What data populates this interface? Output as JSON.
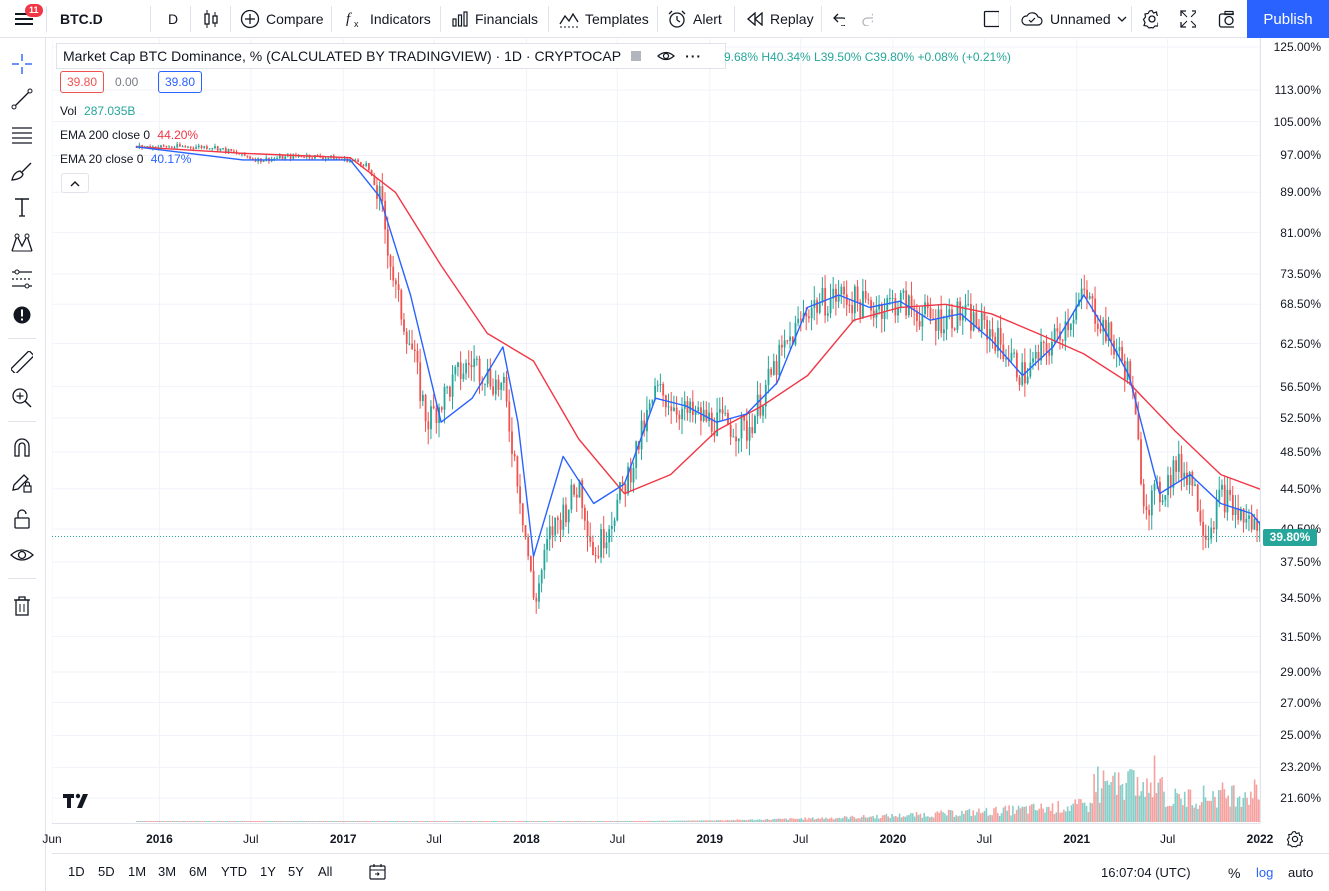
{
  "toolbar": {
    "notification_count": "11",
    "symbol": "BTC.D",
    "interval": "D",
    "compare": "Compare",
    "indicators": "Indicators",
    "financials": "Financials",
    "templates": "Templates",
    "alert": "Alert",
    "replay": "Replay",
    "layout_name": "Unnamed",
    "publish": "Publish"
  },
  "legend": {
    "title": "Market Cap BTC Dominance, % (CALCULATED BY TRADINGVIEW) · 1D · CRYPTOCAP",
    "ohlc": "9.68% H40.34% L39.50% C39.80% +0.08% (+0.21%)",
    "sell_price": "39.80",
    "spread": "0.00",
    "buy_price": "39.80",
    "vol_label": "Vol",
    "vol_value": "287.035B",
    "ema200_label": "EMA 200 close 0",
    "ema200_value": "44.20%",
    "ema20_label": "EMA 20 close 0",
    "ema20_value": "40.17%"
  },
  "price_axis": {
    "ticks": [
      "125.00%",
      "113.00%",
      "105.00%",
      "97.00%",
      "89.00%",
      "81.00%",
      "73.50%",
      "68.50%",
      "62.50%",
      "56.50%",
      "52.50%",
      "48.50%",
      "44.50%",
      "40.50%",
      "37.50%",
      "34.50%",
      "31.50%",
      "29.00%",
      "27.00%",
      "25.00%",
      "23.20%",
      "21.60%"
    ],
    "last_price": "39.80%"
  },
  "time_axis": {
    "ticks": [
      "Jun",
      "2016",
      "Jul",
      "2017",
      "Jul",
      "2018",
      "Jul",
      "2019",
      "Jul",
      "2020",
      "Jul",
      "2021",
      "Jul",
      "2022"
    ]
  },
  "bottom_bar": {
    "ranges": [
      "1D",
      "5D",
      "1M",
      "3M",
      "6M",
      "YTD",
      "1Y",
      "5Y",
      "All"
    ],
    "clock": "16:07:04 (UTC)",
    "percent": "%",
    "log": "log",
    "auto": "auto"
  },
  "colors": {
    "up": "#26a69a",
    "down": "#ef5350",
    "ema200": "#f23645",
    "ema20": "#2962ff",
    "accent": "#2962ff"
  },
  "chart_data": {
    "type": "candlestick",
    "scale": "log",
    "series": [
      {
        "name": "BTC.D",
        "x": [
          "2015-11",
          "2016-01",
          "2016-04",
          "2016-07",
          "2016-10",
          "2017-01",
          "2017-02",
          "2017-03",
          "2017-04",
          "2017-05",
          "2017-06",
          "2017-08",
          "2017-09",
          "2017-11",
          "2017-12",
          "2018-01",
          "2018-02",
          "2018-04",
          "2018-05",
          "2018-07",
          "2018-09",
          "2018-11",
          "2019-01",
          "2019-03",
          "2019-05",
          "2019-07",
          "2019-09",
          "2019-11",
          "2020-01",
          "2020-03",
          "2020-05",
          "2020-07",
          "2020-09",
          "2020-11",
          "2021-01",
          "2021-02",
          "2021-03",
          "2021-04",
          "2021-05",
          "2021-06",
          "2021-07",
          "2021-08",
          "2021-09",
          "2021-10",
          "2021-11",
          "2021-12",
          "2022-01"
        ],
        "values": [
          99,
          99,
          99,
          96,
          97,
          96,
          95,
          87,
          70,
          62,
          52,
          58,
          60,
          56,
          45,
          34,
          40,
          45,
          38,
          45,
          56,
          53,
          52,
          51,
          60,
          68,
          70,
          68,
          69,
          66,
          67,
          64,
          58,
          63,
          70,
          66,
          62,
          58,
          43,
          44,
          47,
          46,
          40,
          44,
          42,
          41,
          39.8
        ]
      },
      {
        "name": "EMA 200 close 0",
        "x": [
          "2015-11",
          "2016-06",
          "2017-01",
          "2017-04",
          "2017-07",
          "2017-10",
          "2018-01",
          "2018-04",
          "2018-07",
          "2018-10",
          "2019-01",
          "2019-04",
          "2019-07",
          "2019-10",
          "2020-01",
          "2020-04",
          "2020-07",
          "2020-10",
          "2021-01",
          "2021-04",
          "2021-07",
          "2021-10",
          "2022-01"
        ],
        "values": [
          99,
          97.5,
          96.5,
          89,
          75,
          64,
          60,
          50,
          44,
          46,
          51,
          54,
          58,
          66,
          68,
          68.5,
          67,
          64,
          61,
          57,
          51,
          46,
          44.2
        ]
      },
      {
        "name": "EMA 20 close 0",
        "x": [
          "2015-11",
          "2016-06",
          "2017-01",
          "2017-03",
          "2017-05",
          "2017-07",
          "2017-09",
          "2017-11",
          "2017-12",
          "2018-01",
          "2018-03",
          "2018-05",
          "2018-07",
          "2018-09",
          "2018-11",
          "2019-01",
          "2019-03",
          "2019-05",
          "2019-07",
          "2019-09",
          "2019-11",
          "2020-01",
          "2020-03",
          "2020-05",
          "2020-07",
          "2020-09",
          "2020-11",
          "2021-01",
          "2021-02",
          "2021-04",
          "2021-06",
          "2021-08",
          "2021-10",
          "2021-12",
          "2022-01"
        ],
        "values": [
          99,
          96,
          96,
          88,
          70,
          52,
          55,
          62,
          52,
          38,
          48,
          43,
          45,
          55,
          54,
          52,
          53,
          57,
          68,
          70,
          68,
          69,
          66,
          67,
          63,
          58,
          62,
          70,
          66,
          58,
          44,
          46,
          43,
          42,
          40.2
        ]
      }
    ],
    "grid": true
  }
}
